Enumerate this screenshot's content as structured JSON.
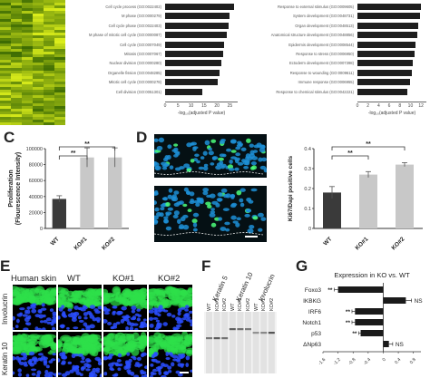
{
  "panels": {
    "C": "C",
    "D": "D",
    "E": "E",
    "F": "F",
    "G": "G"
  },
  "go_left": {
    "terms": [
      "Cell cycle process (GO:0022402)",
      "M phase (GO:0000279)",
      "Cell cycle phase (GO:0022403)",
      "M phase of mitotic cell cycle (GO:0000087)",
      "Cell cycle (GO:0007049)",
      "Mitosis (GO:0007067)",
      "Nuclear division (GO:0000280)",
      "Organelle fission (GO:0048285)",
      "Mitotic cell cycle (GO:0000278)",
      "Cell division (GO:0051301)"
    ],
    "values": [
      26.5,
      25.0,
      24.6,
      23.8,
      22.9,
      22.3,
      21.6,
      21.0,
      20.4,
      14.5
    ],
    "ticks": [
      "0",
      "5",
      "10",
      "15",
      "20",
      "25"
    ],
    "xlabel": "-log₁₀(adjusted P value)",
    "xmax": 28
  },
  "go_right": {
    "terms": [
      "Response to external stimulus (GO:0009605)",
      "System development (GO:0048731)",
      "Organ development (GO:0048513)",
      "Anatomical structure development (GO:0048856)",
      "Epidermis development (GO:0008544)",
      "Response to stress (GO:0006950)",
      "Ectoderm development (GO:0007398)",
      "Response to wounding (GO:0009611)",
      "Immune response (GO:0006955)",
      "Response to chemical stimulus (GO:0042221)"
    ],
    "values": [
      12.0,
      11.8,
      11.5,
      11.3,
      11.0,
      10.7,
      10.5,
      10.3,
      10.0,
      9.4
    ],
    "ticks": [
      "0",
      "2",
      "4",
      "6",
      "8",
      "10",
      "12"
    ],
    "xlabel": "-log₁₀(adjusted P value)",
    "xmax": 13
  },
  "chart_data": [
    {
      "type": "bar",
      "panel": "C",
      "categories": [
        "WT",
        "KO#1",
        "KO#2"
      ],
      "values": [
        37000,
        89000,
        89000
      ],
      "errors": [
        4000,
        12000,
        12000
      ],
      "colors": [
        "#3a3a3a",
        "#c8c8c8",
        "#c8c8c8"
      ],
      "ylabel": "Proliferation\n(Flourescence Intensity)",
      "ylim": [
        0,
        100000
      ],
      "yticks": [
        "0",
        "20000",
        "40000",
        "60000",
        "80000",
        "100000"
      ],
      "sig": [
        "**",
        "**"
      ]
    },
    {
      "type": "bar",
      "panel": "D",
      "categories": [
        "WT",
        "KO#1",
        "KO#2"
      ],
      "values": [
        0.18,
        0.27,
        0.32
      ],
      "errors": [
        0.03,
        0.015,
        0.01
      ],
      "colors": [
        "#3a3a3a",
        "#c8c8c8",
        "#c8c8c8"
      ],
      "ylabel": "Ki67/Dapi positive cells",
      "ylim": [
        0,
        0.4
      ],
      "yticks": [
        "0",
        "0.1",
        "0.2",
        "0.3",
        "0.4"
      ],
      "sig": [
        "**",
        "**"
      ]
    },
    {
      "type": "bar",
      "panel": "G",
      "title": "Expression in KO vs. WT",
      "categories": [
        "Foxo3",
        "IKBKG",
        "IRF6",
        "Notch1",
        "p53",
        "ΔNp63"
      ],
      "values": [
        -1.2,
        0.6,
        -0.75,
        -0.75,
        -0.6,
        0.15
      ],
      "errors": [
        0.1,
        0.15,
        0.08,
        0.08,
        0.05,
        0.1
      ],
      "labels_left": [
        "**",
        "",
        "**",
        "**",
        "**",
        ""
      ],
      "labels_right": [
        "",
        "NS",
        "",
        "",
        "",
        "NS"
      ],
      "xlim": [
        -1.6,
        1.0
      ],
      "xticks": [
        "-1.6",
        "-1.2",
        "-0.8",
        "-0.4",
        "0",
        "0.4",
        "0.8"
      ]
    }
  ],
  "panel_e": {
    "columns": [
      "Human skin",
      "WT",
      "KO#1",
      "KO#2"
    ],
    "rows": [
      "Involucrin",
      "Keratin 10"
    ]
  },
  "panel_f": {
    "lanes": [
      "WT",
      "KO#1",
      "KO#2",
      "WT",
      "KO#1",
      "KO#2",
      "WT",
      "KO#1",
      "KO#2"
    ],
    "groups": [
      "Keratin 5",
      "Keratin 10",
      "Involucrin"
    ]
  }
}
